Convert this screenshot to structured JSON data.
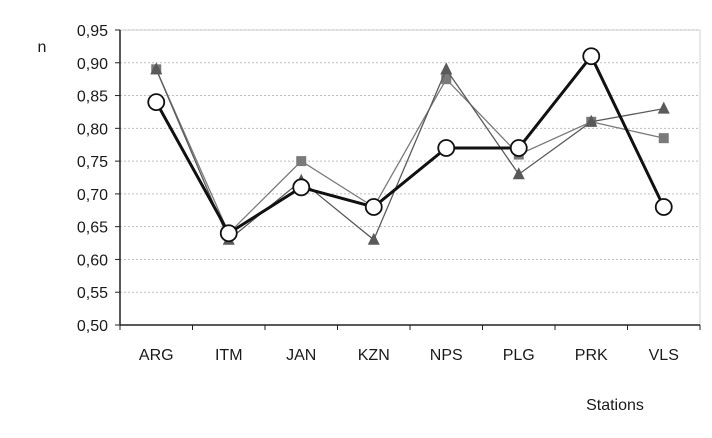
{
  "chart_data": {
    "type": "line",
    "xlabel": "Stations",
    "ylabel": "n",
    "categories": [
      "ARG",
      "ITM",
      "JAN",
      "KZN",
      "NPS",
      "PLG",
      "PRK",
      "VLS"
    ],
    "ylim": [
      0.5,
      0.95
    ],
    "yticks": [
      "0,50",
      "0,55",
      "0,60",
      "0,65",
      "0,70",
      "0,75",
      "0,80",
      "0,85",
      "0,90",
      "0,95"
    ],
    "grid": true,
    "legend": "none",
    "series": [
      {
        "marker": "square",
        "color": "#7a7a7a",
        "values": [
          0.89,
          0.64,
          0.75,
          0.68,
          0.875,
          0.76,
          0.81,
          0.785
        ]
      },
      {
        "marker": "triangle",
        "color": "#5a5a5a",
        "values": [
          0.89,
          0.63,
          0.72,
          0.63,
          0.89,
          0.73,
          0.81,
          0.83
        ]
      },
      {
        "marker": "circle",
        "color": "#111111",
        "values": [
          0.84,
          0.64,
          0.71,
          0.68,
          0.77,
          0.77,
          0.91,
          0.68
        ]
      }
    ]
  }
}
